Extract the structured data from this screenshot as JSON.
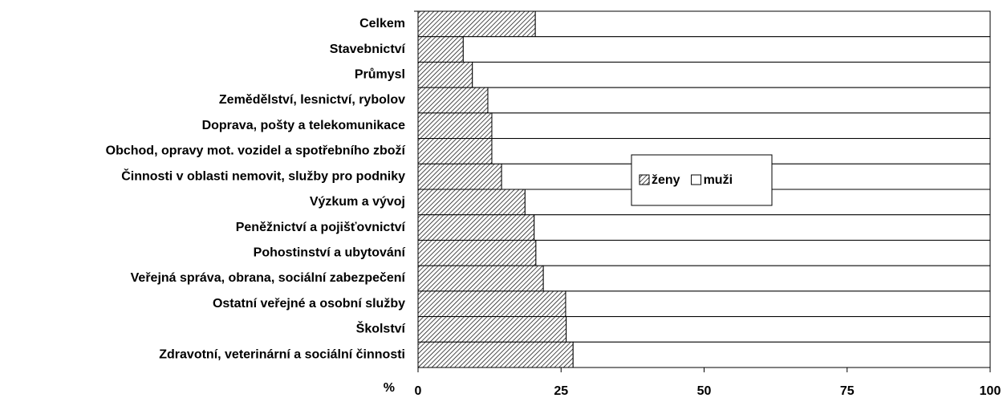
{
  "chart_data": {
    "type": "stacked-bar-horizontal",
    "x_label": "%",
    "categories": [
      "Celkem",
      "Stavebnictví",
      "Průmysl",
      "Zemědělství, lesnictví, rybolov",
      "Doprava, pošty a telekomunikace",
      "Obchod, opravy mot. vozidel a spotřebního zboží",
      "Činnosti v oblasti nemovit, služby pro podniky",
      "Výzkum a vývoj",
      "Peněžnictví a pojišťovnictví",
      "Pohostinství a ubytování",
      "Veřejná správa, obrana, sociální zabezpečení",
      "Ostatní veřejné a osobní služby",
      "Školství",
      "Zdravotní, veterinární a sociální činnosti"
    ],
    "series": [
      {
        "name": "ženy",
        "color": "hatch",
        "values": [
          20.5,
          7.9,
          9.5,
          12.2,
          12.9,
          12.9,
          14.6,
          18.7,
          20.3,
          20.6,
          21.9,
          25.8,
          25.9,
          27.1
        ]
      },
      {
        "name": "muži",
        "color": "#ffffff",
        "values": [
          79.5,
          92.1,
          90.5,
          87.8,
          87.1,
          87.1,
          85.4,
          81.3,
          79.7,
          79.4,
          78.1,
          74.2,
          74.1,
          72.9
        ]
      }
    ],
    "xlim": [
      0,
      100
    ],
    "xticks": [
      0,
      25,
      50,
      75,
      100
    ],
    "legend": "center"
  }
}
